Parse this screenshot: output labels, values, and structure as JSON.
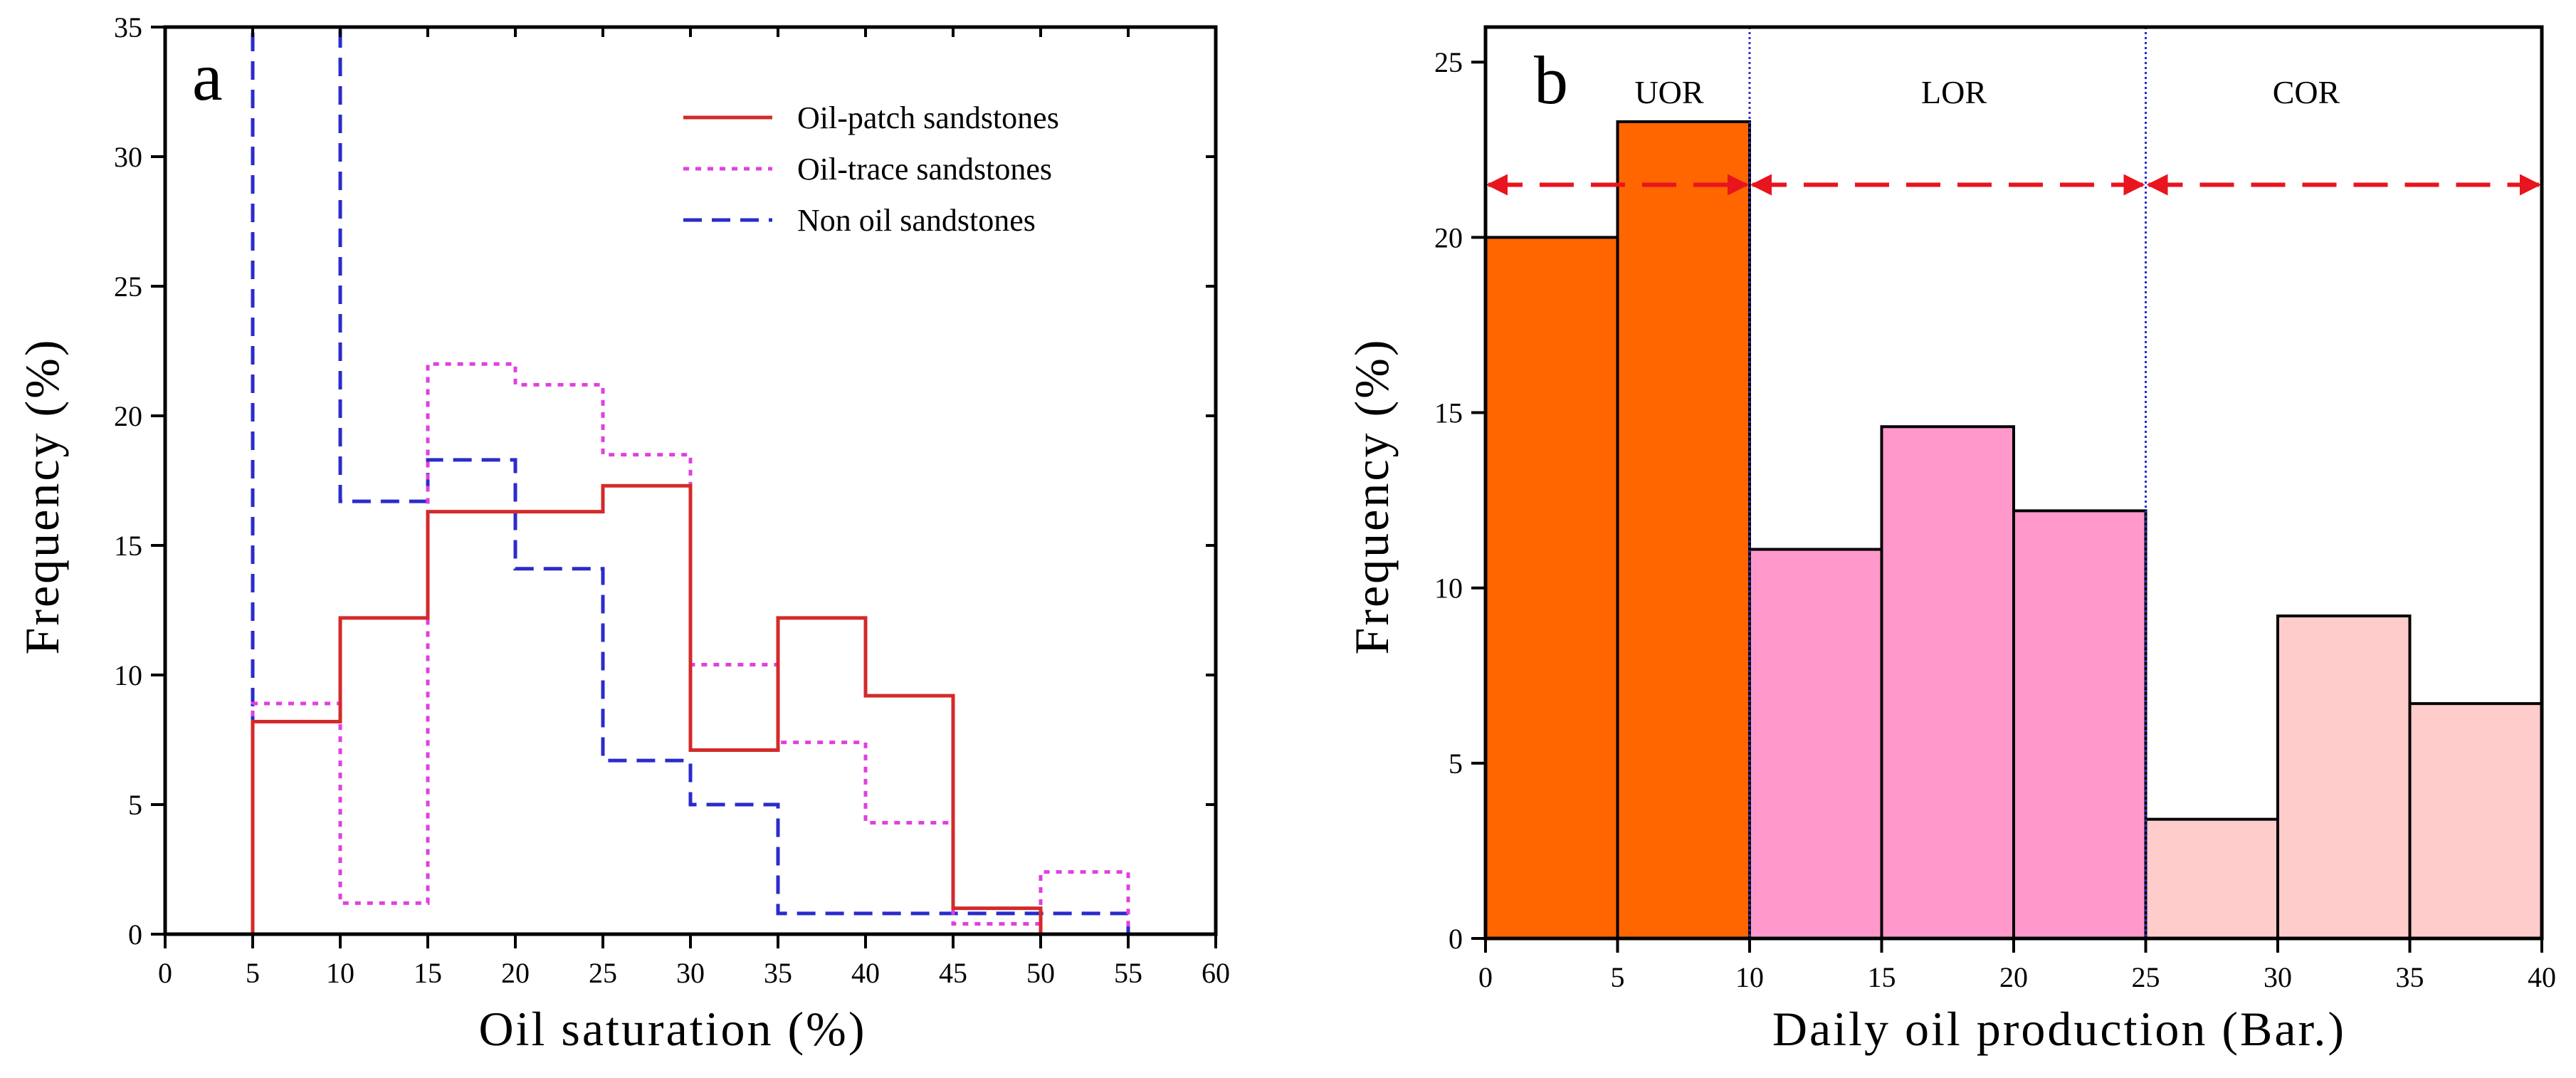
{
  "chart_data": [
    {
      "type": "line",
      "style": "step",
      "panel_label": "a",
      "xlabel": "Oil saturation (%)",
      "ylabel": "Frequency (%)",
      "xlim": [
        0,
        60
      ],
      "ylim": [
        0,
        35
      ],
      "xticks": [
        "0",
        "5",
        "10",
        "15",
        "20",
        "25",
        "30",
        "35",
        "40",
        "45",
        "50",
        "55",
        "60"
      ],
      "yticks": [
        "0",
        "5",
        "10",
        "15",
        "20",
        "25",
        "30",
        "35"
      ],
      "series": [
        {
          "name": "Oil-patch sandstones",
          "color": "#d42a2a",
          "dash": "solid",
          "x": [
            5,
            10,
            15,
            20,
            25,
            30,
            35,
            40,
            45,
            50
          ],
          "values": [
            8.2,
            12.2,
            16.3,
            16.3,
            17.3,
            7.1,
            12.2,
            9.2,
            1.0,
            0.0
          ]
        },
        {
          "name": "Oil-trace sandstones",
          "color": "#e040e0",
          "dash": "dotted",
          "x": [
            5,
            10,
            15,
            20,
            25,
            30,
            35,
            40,
            45,
            50,
            55
          ],
          "values": [
            8.9,
            1.2,
            22.0,
            21.2,
            18.5,
            10.4,
            7.4,
            4.3,
            0.4,
            2.4,
            0.0
          ]
        },
        {
          "name": "Non oil sandstones",
          "color": "#2b2bcc",
          "dash": "dashed",
          "x": [
            5,
            10,
            15,
            20,
            25,
            30,
            35,
            40,
            45,
            50,
            55
          ],
          "values": [
            35.0,
            16.7,
            18.3,
            14.1,
            6.7,
            5.0,
            0.8,
            0.8,
            0.8,
            0.8,
            0.0
          ]
        }
      ],
      "legend_position": "top-right"
    },
    {
      "type": "bar",
      "panel_label": "b",
      "xlabel": "Daily oil production (Bar.)",
      "ylabel": "Frequency (%)",
      "xlim": [
        0,
        40
      ],
      "ylim": [
        0,
        26
      ],
      "xticks": [
        "0",
        "5",
        "10",
        "15",
        "20",
        "25",
        "30",
        "35",
        "40"
      ],
      "yticks": [
        "0",
        "5",
        "10",
        "15",
        "20",
        "25"
      ],
      "bins": [
        {
          "start": 0,
          "end": 5,
          "value": 20.0,
          "color": "#ff6600"
        },
        {
          "start": 5,
          "end": 10,
          "value": 23.3,
          "color": "#ff6600"
        },
        {
          "start": 10,
          "end": 15,
          "value": 11.1,
          "color": "#ff99cc"
        },
        {
          "start": 15,
          "end": 20,
          "value": 14.6,
          "color": "#ff99cc"
        },
        {
          "start": 20,
          "end": 25,
          "value": 12.2,
          "color": "#ff99cc"
        },
        {
          "start": 25,
          "end": 30,
          "value": 3.4,
          "color": "#ffcccc"
        },
        {
          "start": 30,
          "end": 35,
          "value": 9.2,
          "color": "#ffcccc"
        },
        {
          "start": 35,
          "end": 40,
          "value": 6.7,
          "color": "#ffcccc"
        }
      ],
      "regions": [
        {
          "label": "UOR",
          "start": 0,
          "end": 10
        },
        {
          "label": "LOR",
          "start": 10,
          "end": 25
        },
        {
          "label": "COR",
          "start": 25,
          "end": 40
        }
      ],
      "divider_lines": [
        10,
        25
      ],
      "divider_color": "#2b2bcc",
      "arrow_level": 21.5,
      "arrow_color": "#e8141e"
    }
  ]
}
